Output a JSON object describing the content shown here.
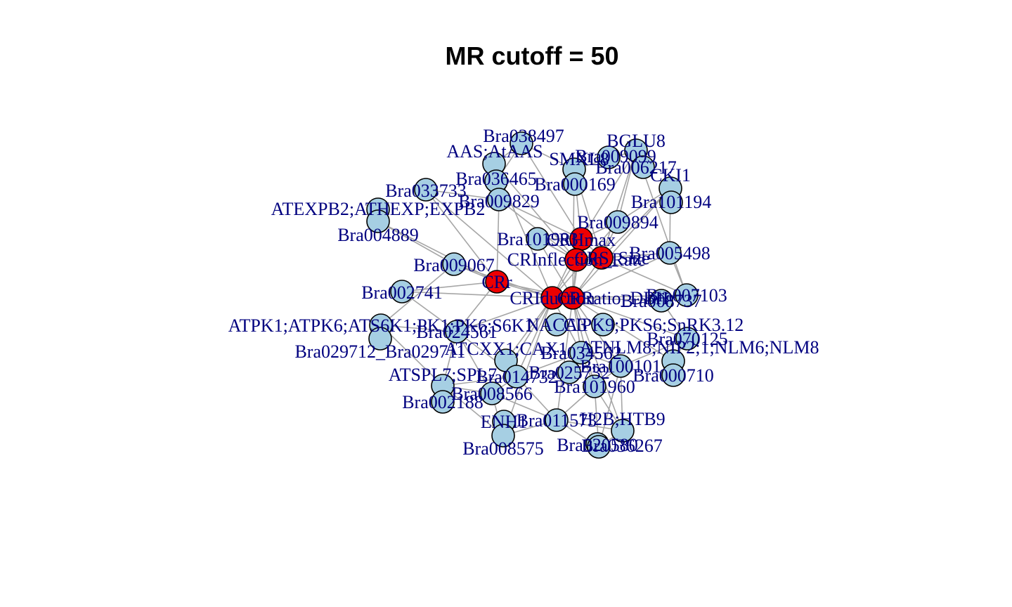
{
  "title": "MR cutoff = 50",
  "colors": {
    "gene": "#a6cfe3",
    "trait": "#ee0000",
    "edge": "#a6a6a6",
    "label": "#00007f"
  },
  "nodes": [
    {
      "id": "Bra038497",
      "label": "Bra038497",
      "kind": "gene"
    },
    {
      "id": "AAS",
      "label": "AAS;AtAAS",
      "kind": "gene"
    },
    {
      "id": "SMXL",
      "label": "SMXL8",
      "kind": "gene"
    },
    {
      "id": "Bra009099",
      "label": "Bra009099",
      "kind": "gene"
    },
    {
      "id": "BGLU8",
      "label": "BGLU8",
      "kind": "gene"
    },
    {
      "id": "Bra006217",
      "label": "Bra006217",
      "kind": "gene"
    },
    {
      "id": "CKI1",
      "label": "CKI1",
      "kind": "gene"
    },
    {
      "id": "Bra036465",
      "label": "Bra036465",
      "kind": "gene"
    },
    {
      "id": "Bra000169",
      "label": "Bra000169",
      "kind": "gene"
    },
    {
      "id": "Bra033733",
      "label": "Bra033733",
      "kind": "gene"
    },
    {
      "id": "Bra009829",
      "label": "Bra009829",
      "kind": "gene"
    },
    {
      "id": "Bra101194",
      "label": "Bra101194",
      "kind": "gene"
    },
    {
      "id": "ATEXPB2",
      "label": "ATEXPB2;ATHEXP;EXPB2",
      "kind": "gene"
    },
    {
      "id": "Bra004889",
      "label": "Bra004889",
      "kind": "gene"
    },
    {
      "id": "Bra009894",
      "label": "Bra009894",
      "kind": "gene"
    },
    {
      "id": "Bra101983",
      "label": "Bra101983",
      "kind": "gene"
    },
    {
      "id": "CRHmax",
      "label": "CRHmax",
      "kind": "trait"
    },
    {
      "id": "CRInflection",
      "label": "CRInflection_Rate",
      "kind": "trait"
    },
    {
      "id": "CRSize",
      "label": "CRS_Size",
      "kind": "trait"
    },
    {
      "id": "Bra005498",
      "label": "Bra005498",
      "kind": "gene"
    },
    {
      "id": "Bra009067",
      "label": "Bra009067",
      "kind": "gene"
    },
    {
      "id": "CRr",
      "label": "CRr",
      "kind": "trait"
    },
    {
      "id": "Bra002741",
      "label": "Bra002741",
      "kind": "gene"
    },
    {
      "id": "CRIduction",
      "label": "CRIduction",
      "kind": "trait"
    },
    {
      "id": "CRRatio",
      "label": "CRRatio_DBH",
      "kind": "trait"
    },
    {
      "id": "Bra008737",
      "label": "Bra008737",
      "kind": "gene"
    },
    {
      "id": "Bra007103",
      "label": "Bra007103",
      "kind": "gene"
    },
    {
      "id": "ATPK1",
      "label": "ATPK1;ATPK6;ATS6K1;PK1;PK6;S6K1",
      "kind": "gene"
    },
    {
      "id": "Bra024561",
      "label": "Bra024561",
      "kind": "gene"
    },
    {
      "id": "NACA",
      "label": "NACA3",
      "kind": "gene"
    },
    {
      "id": "CIPK",
      "label": "CIPK9;PKS6;SnRK3.12",
      "kind": "gene"
    },
    {
      "id": "Bra070125",
      "label": "Bra070125",
      "kind": "gene"
    },
    {
      "id": "Bra029712",
      "label": "Bra029712_Bra029711",
      "kind": "gene"
    },
    {
      "id": "ATCXX",
      "label": "ATCXX1;CAX1",
      "kind": "gene"
    },
    {
      "id": "Bra034562",
      "label": "Bra034562",
      "kind": "gene"
    },
    {
      "id": "NLM",
      "label": "ATNLM8;NIP2;1;NLM6;NLM8",
      "kind": "gene"
    },
    {
      "id": "ATSPL7",
      "label": "ATSPL7;SPL7",
      "kind": "gene"
    },
    {
      "id": "Bra014732",
      "label": "Bra014732",
      "kind": "gene"
    },
    {
      "id": "Bra025732",
      "label": "Bra025732",
      "kind": "gene"
    },
    {
      "id": "Bra100101",
      "label": "Bra100101",
      "kind": "gene"
    },
    {
      "id": "Bra000710",
      "label": "Bra000710",
      "kind": "gene"
    },
    {
      "id": "Bra008566",
      "label": "Bra008566",
      "kind": "gene"
    },
    {
      "id": "Bra002188",
      "label": "Bra002188",
      "kind": "gene"
    },
    {
      "id": "Bra101960",
      "label": "Bra101960",
      "kind": "gene"
    },
    {
      "id": "ENH1",
      "label": "ENH1",
      "kind": "gene"
    },
    {
      "id": "Bra011573",
      "label": "Bra011573",
      "kind": "gene"
    },
    {
      "id": "H2B",
      "label": "H2B;HTB9",
      "kind": "gene"
    },
    {
      "id": "Bra008575",
      "label": "Bra008575",
      "kind": "gene"
    },
    {
      "id": "Bra020580",
      "label": "Bra020580",
      "kind": "gene"
    },
    {
      "id": "Bra036267",
      "label": "Bra036267",
      "kind": "gene"
    }
  ],
  "edges": [
    [
      "Bra038497",
      "AAS"
    ],
    [
      "Bra038497",
      "SMXL"
    ],
    [
      "Bra038497",
      "Bra036465"
    ],
    [
      "Bra038497",
      "CRHmax"
    ],
    [
      "AAS",
      "Bra036465"
    ],
    [
      "AAS",
      "Bra009829"
    ],
    [
      "AAS",
      "CRInflection"
    ],
    [
      "AAS",
      "CRIduction"
    ],
    [
      "SMXL",
      "CRHmax"
    ],
    [
      "SMXL",
      "CRSize"
    ],
    [
      "SMXL",
      "CRRatio"
    ],
    [
      "SMXL",
      "BGLU8"
    ],
    [
      "BGLU8",
      "CRSize"
    ],
    [
      "BGLU8",
      "CRHmax"
    ],
    [
      "BGLU8",
      "Bra009894"
    ],
    [
      "BGLU8",
      "Bra007103"
    ],
    [
      "CKI1",
      "CRSize"
    ],
    [
      "CKI1",
      "CRRatio"
    ],
    [
      "CKI1",
      "Bra005498"
    ],
    [
      "CKI1",
      "Bra009894"
    ],
    [
      "Bra033733",
      "CRr"
    ],
    [
      "Bra033733",
      "Bra009829"
    ],
    [
      "Bra033733",
      "CRIduction"
    ],
    [
      "Bra009829",
      "CRHmax"
    ],
    [
      "Bra009829",
      "CRInflection"
    ],
    [
      "Bra009829",
      "CRr"
    ],
    [
      "Bra004889",
      "CRr"
    ],
    [
      "Bra004889",
      "Bra009067"
    ],
    [
      "Bra009894",
      "CRHmax"
    ],
    [
      "Bra009894",
      "CRSize"
    ],
    [
      "Bra009894",
      "CRIduction"
    ],
    [
      "Bra101983",
      "CRHmax"
    ],
    [
      "Bra101983",
      "CRRatio"
    ],
    [
      "Bra101983",
      "CRInflection"
    ],
    [
      "CRHmax",
      "CRInflection"
    ],
    [
      "CRHmax",
      "CRSize"
    ],
    [
      "CRHmax",
      "CRIduction"
    ],
    [
      "CRHmax",
      "CRRatio"
    ],
    [
      "CRInflection",
      "CRSize"
    ],
    [
      "CRInflection",
      "CRIduction"
    ],
    [
      "CRInflection",
      "CRRatio"
    ],
    [
      "CRSize",
      "CRRatio"
    ],
    [
      "CRSize",
      "Bra005498"
    ],
    [
      "CRSize",
      "Bra007103"
    ],
    [
      "Bra005498",
      "CRRatio"
    ],
    [
      "Bra005498",
      "Bra007103"
    ],
    [
      "Bra009067",
      "CRr"
    ],
    [
      "Bra009067",
      "CRIduction"
    ],
    [
      "Bra009067",
      "ATPK1"
    ],
    [
      "CRr",
      "CRIduction"
    ],
    [
      "CRr",
      "CRRatio"
    ],
    [
      "CRr",
      "Bra024561"
    ],
    [
      "CRr",
      "Bra002741"
    ],
    [
      "Bra002741",
      "CRIduction"
    ],
    [
      "Bra002741",
      "Bra024561"
    ],
    [
      "CRIduction",
      "CRRatio"
    ],
    [
      "CRIduction",
      "Bra024561"
    ],
    [
      "CRIduction",
      "Bra014732"
    ],
    [
      "CRIduction",
      "Bra034562"
    ],
    [
      "CRIduction",
      "ATCXX"
    ],
    [
      "CRIduction",
      "Bra008566"
    ],
    [
      "CRRatio",
      "Bra008737"
    ],
    [
      "CRRatio",
      "Bra007103"
    ],
    [
      "CRRatio",
      "Bra034562"
    ],
    [
      "CRRatio",
      "Bra100101"
    ],
    [
      "CRRatio",
      "Bra070125"
    ],
    [
      "CRRatio",
      "NLM"
    ],
    [
      "CRRatio",
      "Bra101960"
    ],
    [
      "CRRatio",
      "Bra011573"
    ],
    [
      "CRRatio",
      "H2B"
    ],
    [
      "Bra008737",
      "Bra007103"
    ],
    [
      "Bra008737",
      "Bra070125"
    ],
    [
      "ATPK1",
      "Bra024561"
    ],
    [
      "ATPK1",
      "Bra029712"
    ],
    [
      "ATPK1",
      "ATSPL7"
    ],
    [
      "Bra024561",
      "ATSPL7"
    ],
    [
      "Bra024561",
      "Bra014732"
    ],
    [
      "Bra024561",
      "Bra008566"
    ],
    [
      "Bra034562",
      "Bra100101"
    ],
    [
      "Bra034562",
      "Bra101960"
    ],
    [
      "Bra034562",
      "Bra014732"
    ],
    [
      "Bra070125",
      "NLM"
    ],
    [
      "Bra070125",
      "Bra100101"
    ],
    [
      "Bra014732",
      "Bra008566"
    ],
    [
      "Bra014732",
      "ATSPL7"
    ],
    [
      "Bra014732",
      "Bra011573"
    ],
    [
      "Bra100101",
      "Bra101960"
    ],
    [
      "Bra100101",
      "H2B"
    ],
    [
      "Bra100101",
      "Bra036267"
    ],
    [
      "Bra101960",
      "Bra011573"
    ],
    [
      "Bra101960",
      "Bra036267"
    ],
    [
      "Bra101960",
      "H2B"
    ],
    [
      "ATSPL7",
      "Bra008566"
    ],
    [
      "ATSPL7",
      "Bra008575"
    ],
    [
      "Bra008566",
      "Bra008575"
    ],
    [
      "Bra008566",
      "Bra011573"
    ],
    [
      "Bra011573",
      "Bra008575"
    ],
    [
      "Bra011573",
      "Bra036267"
    ],
    [
      "Bra011573",
      "H2B"
    ],
    [
      "H2B",
      "Bra036267"
    ],
    [
      "Bra008575",
      "CRIduction"
    ]
  ]
}
